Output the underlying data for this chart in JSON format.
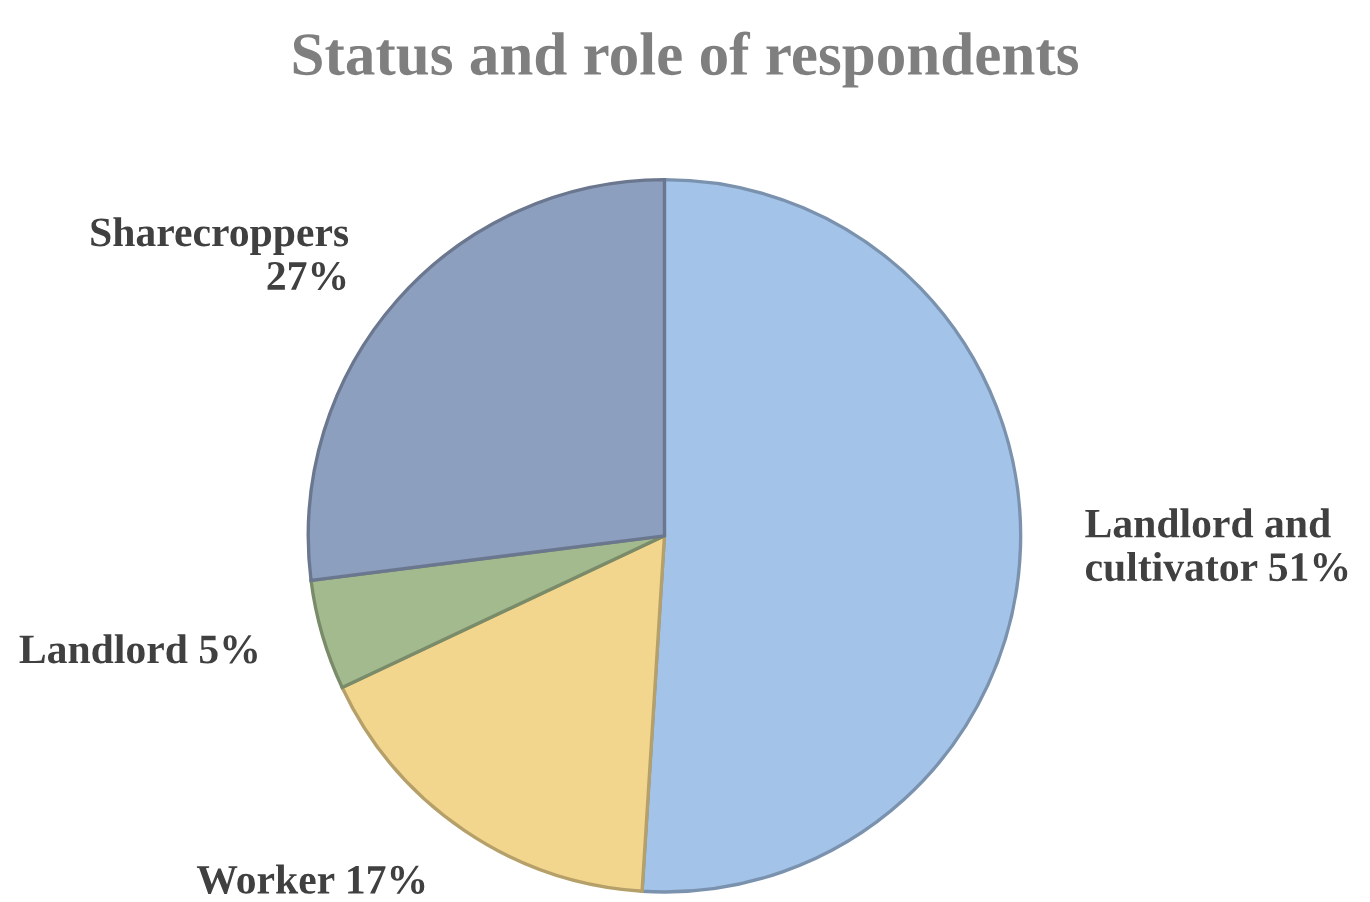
{
  "chart_data": {
    "type": "pie",
    "title": "Status and role of respondents",
    "categories": [
      "Landlord and\ncultivator",
      "Worker",
      "Landlord",
      "Sharecroppers"
    ],
    "values": [
      51,
      17,
      5,
      27
    ],
    "value_labels": [
      "51%",
      "17%",
      "5%",
      "27%"
    ],
    "colors": [
      "#a3c3e8",
      "#f3d68e",
      "#a3b98e",
      "#8d9fbf"
    ],
    "legend": false
  }
}
